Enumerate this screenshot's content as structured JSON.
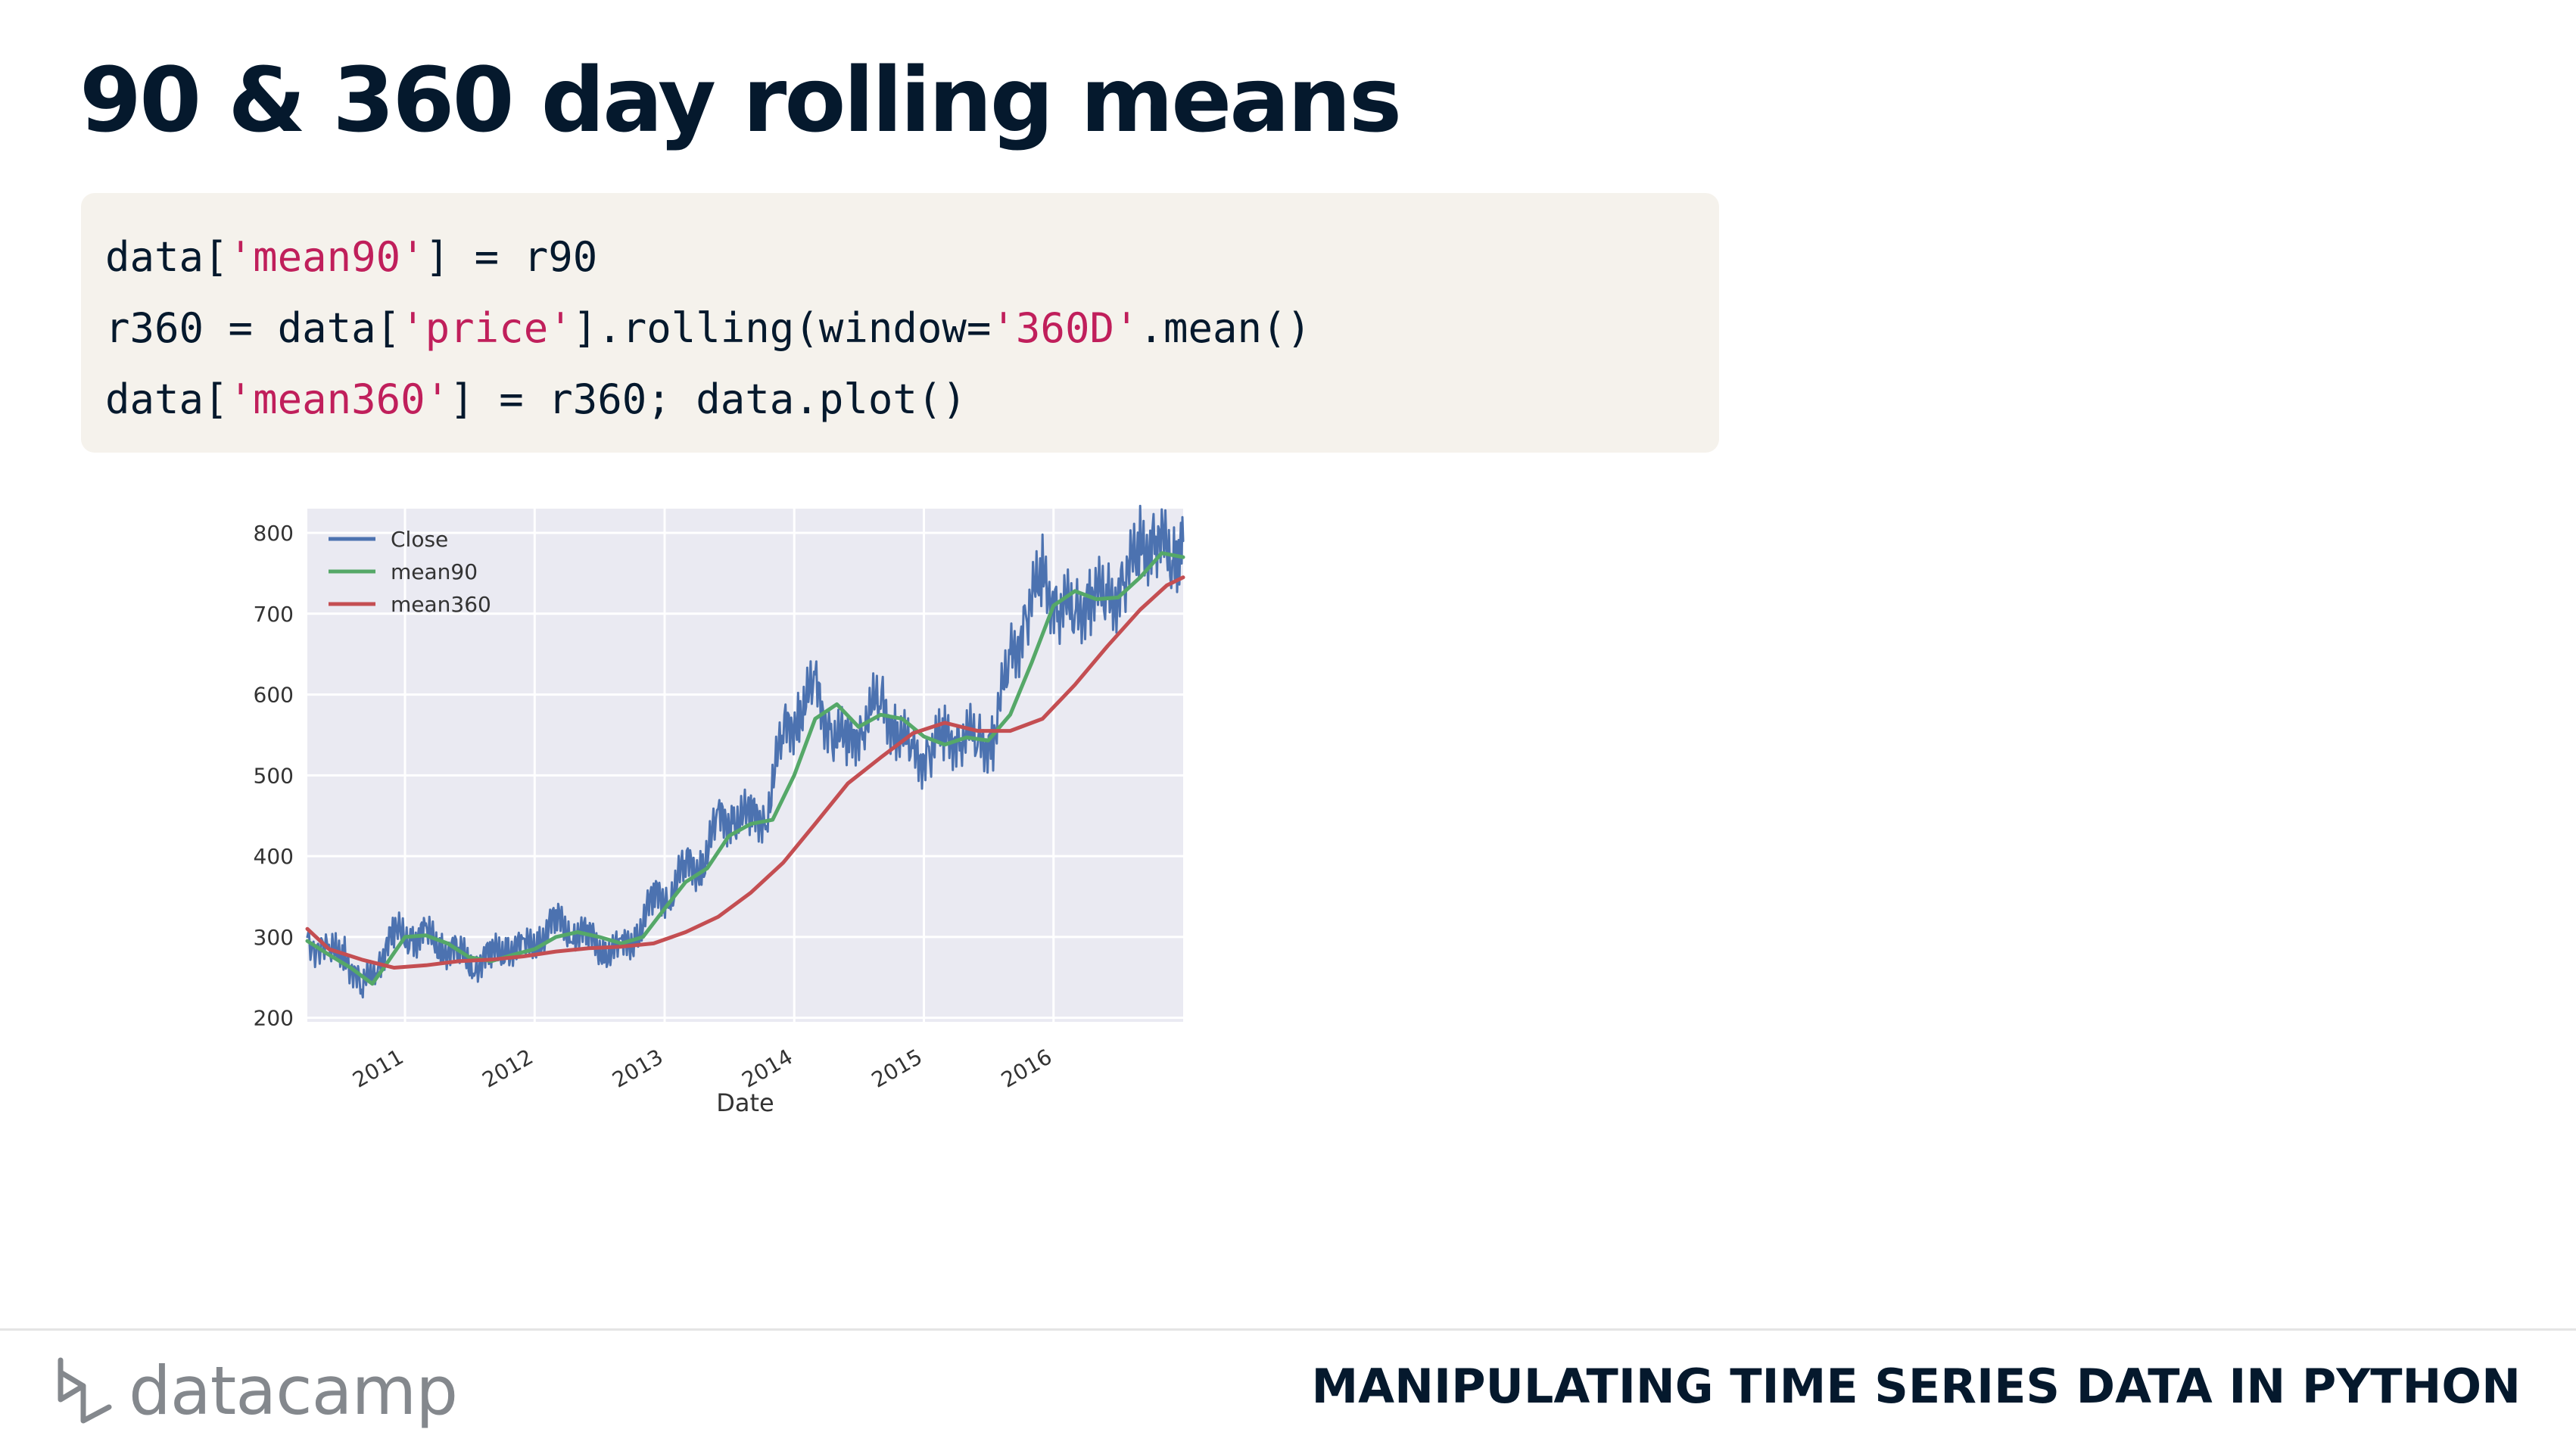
{
  "slide": {
    "title": "90 & 360 day rolling means",
    "course_title": "MANIPULATING TIME SERIES DATA IN PYTHON",
    "brand": "datacamp"
  },
  "code": {
    "lines": [
      [
        {
          "t": "data[",
          "s": false
        },
        {
          "t": "'mean90'",
          "s": true
        },
        {
          "t": "] = r90",
          "s": false
        }
      ],
      [
        {
          "t": "r360 = data[",
          "s": false
        },
        {
          "t": "'price'",
          "s": true
        },
        {
          "t": "].rolling(window=",
          "s": false
        },
        {
          "t": "'360D'",
          "s": true
        },
        {
          "t": ".mean()",
          "s": false
        }
      ],
      [
        {
          "t": "data[",
          "s": false
        },
        {
          "t": "'mean360'",
          "s": true
        },
        {
          "t": "] = r360; data.plot()",
          "s": false
        }
      ]
    ]
  },
  "colors": {
    "close": "#4c72b0",
    "mean90": "#55a868",
    "mean360": "#c44e52",
    "plot_bg": "#eaeaf2",
    "code_string": "#c01f5b"
  },
  "chart_data": {
    "type": "line",
    "xlabel": "Date",
    "ylabel": "",
    "xlim": [
      "2010-04-01",
      "2016-12-31"
    ],
    "ylim": [
      195,
      830
    ],
    "yticks": [
      200,
      300,
      400,
      500,
      600,
      700,
      800
    ],
    "xticks": [
      "2011",
      "2012",
      "2013",
      "2014",
      "2015",
      "2016"
    ],
    "grid": true,
    "legend": "top-left",
    "series": [
      {
        "name": "Close",
        "color": "#4c72b0",
        "points": [
          [
            "2010-04-01",
            300
          ],
          [
            "2010-06-01",
            275
          ],
          [
            "2010-07-15",
            285
          ],
          [
            "2010-09-01",
            232
          ],
          [
            "2010-10-15",
            270
          ],
          [
            "2010-12-01",
            302
          ],
          [
            "2011-01-20",
            302
          ],
          [
            "2011-03-01",
            300
          ],
          [
            "2011-04-15",
            290
          ],
          [
            "2011-06-01",
            278
          ],
          [
            "2011-07-15",
            268
          ],
          [
            "2011-09-01",
            275
          ],
          [
            "2011-10-15",
            290
          ],
          [
            "2011-12-01",
            282
          ],
          [
            "2012-01-15",
            300
          ],
          [
            "2012-03-01",
            318
          ],
          [
            "2012-04-15",
            310
          ],
          [
            "2012-06-01",
            298
          ],
          [
            "2012-07-15",
            285
          ],
          [
            "2012-09-01",
            282
          ],
          [
            "2012-10-15",
            305
          ],
          [
            "2012-12-01",
            345
          ],
          [
            "2013-01-15",
            355
          ],
          [
            "2013-03-01",
            385
          ],
          [
            "2013-04-15",
            390
          ],
          [
            "2013-06-01",
            440
          ],
          [
            "2013-07-15",
            450
          ],
          [
            "2013-09-01",
            445
          ],
          [
            "2013-10-15",
            455
          ],
          [
            "2013-12-01",
            550
          ],
          [
            "2014-01-15",
            580
          ],
          [
            "2014-03-01",
            605
          ],
          [
            "2014-04-15",
            555
          ],
          [
            "2014-06-01",
            535
          ],
          [
            "2014-07-15",
            570
          ],
          [
            "2014-09-01",
            590
          ],
          [
            "2014-10-15",
            560
          ],
          [
            "2014-12-01",
            520
          ],
          [
            "2015-01-15",
            530
          ],
          [
            "2015-03-01",
            545
          ],
          [
            "2015-04-15",
            552
          ],
          [
            "2015-06-01",
            540
          ],
          [
            "2015-07-15",
            548
          ],
          [
            "2015-09-01",
            640
          ],
          [
            "2015-10-15",
            695
          ],
          [
            "2015-12-01",
            745
          ],
          [
            "2016-01-15",
            710
          ],
          [
            "2016-03-01",
            700
          ],
          [
            "2016-04-15",
            725
          ],
          [
            "2016-06-01",
            715
          ],
          [
            "2016-07-15",
            735
          ],
          [
            "2016-09-01",
            780
          ],
          [
            "2016-10-15",
            795
          ],
          [
            "2016-12-01",
            765
          ],
          [
            "2016-12-31",
            790
          ]
        ]
      },
      {
        "name": "mean90",
        "color": "#55a868",
        "points": [
          [
            "2010-04-01",
            295
          ],
          [
            "2010-06-01",
            278
          ],
          [
            "2010-08-01",
            262
          ],
          [
            "2010-10-01",
            242
          ],
          [
            "2010-11-15",
            270
          ],
          [
            "2011-01-01",
            300
          ],
          [
            "2011-03-01",
            302
          ],
          [
            "2011-05-01",
            292
          ],
          [
            "2011-07-01",
            275
          ],
          [
            "2011-09-01",
            270
          ],
          [
            "2011-11-01",
            278
          ],
          [
            "2012-01-01",
            285
          ],
          [
            "2012-03-01",
            300
          ],
          [
            "2012-05-01",
            306
          ],
          [
            "2012-07-01",
            300
          ],
          [
            "2012-09-01",
            292
          ],
          [
            "2012-11-01",
            300
          ],
          [
            "2013-01-01",
            335
          ],
          [
            "2013-03-01",
            368
          ],
          [
            "2013-05-01",
            385
          ],
          [
            "2013-07-01",
            425
          ],
          [
            "2013-09-01",
            440
          ],
          [
            "2013-11-01",
            445
          ],
          [
            "2014-01-01",
            500
          ],
          [
            "2014-03-01",
            570
          ],
          [
            "2014-05-01",
            588
          ],
          [
            "2014-07-01",
            560
          ],
          [
            "2014-09-01",
            575
          ],
          [
            "2014-11-01",
            570
          ],
          [
            "2015-01-01",
            548
          ],
          [
            "2015-03-01",
            538
          ],
          [
            "2015-05-01",
            547
          ],
          [
            "2015-07-01",
            543
          ],
          [
            "2015-09-01",
            575
          ],
          [
            "2015-11-01",
            640
          ],
          [
            "2016-01-01",
            710
          ],
          [
            "2016-03-01",
            728
          ],
          [
            "2016-05-01",
            718
          ],
          [
            "2016-07-01",
            720
          ],
          [
            "2016-09-01",
            745
          ],
          [
            "2016-11-01",
            775
          ],
          [
            "2016-12-31",
            770
          ]
        ]
      },
      {
        "name": "mean360",
        "color": "#c44e52",
        "points": [
          [
            "2010-04-01",
            310
          ],
          [
            "2010-06-01",
            285
          ],
          [
            "2010-09-01",
            272
          ],
          [
            "2010-12-01",
            262
          ],
          [
            "2011-03-01",
            265
          ],
          [
            "2011-06-01",
            270
          ],
          [
            "2011-09-01",
            272
          ],
          [
            "2011-12-01",
            276
          ],
          [
            "2012-03-01",
            282
          ],
          [
            "2012-06-01",
            286
          ],
          [
            "2012-09-01",
            288
          ],
          [
            "2012-12-01",
            292
          ],
          [
            "2013-03-01",
            306
          ],
          [
            "2013-06-01",
            325
          ],
          [
            "2013-09-01",
            355
          ],
          [
            "2013-12-01",
            392
          ],
          [
            "2014-03-01",
            440
          ],
          [
            "2014-06-01",
            490
          ],
          [
            "2014-09-01",
            522
          ],
          [
            "2014-12-01",
            552
          ],
          [
            "2015-03-01",
            565
          ],
          [
            "2015-06-01",
            555
          ],
          [
            "2015-09-01",
            555
          ],
          [
            "2015-12-01",
            570
          ],
          [
            "2016-03-01",
            612
          ],
          [
            "2016-06-01",
            660
          ],
          [
            "2016-09-01",
            705
          ],
          [
            "2016-11-15",
            735
          ],
          [
            "2016-12-31",
            745
          ]
        ]
      }
    ]
  }
}
